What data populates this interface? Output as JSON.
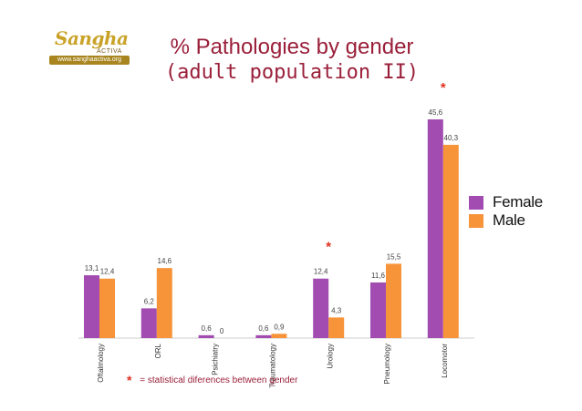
{
  "logo": {
    "word": "Sangha",
    "sub": "ACTIVA",
    "url": "www.sanghaactiva.org"
  },
  "title_line1": "% Pathologies by gender",
  "title_line2": "(adult population II)",
  "footnote": {
    "symbol": "*",
    "text": "= statistical diferences between gender"
  },
  "colors": {
    "female": "#a24bb0",
    "male": "#f7943a",
    "star": "#e0301e",
    "title": "#9a1f3a"
  },
  "chart_data": {
    "type": "bar",
    "title": "% Pathologies by gender (adult population II)",
    "categories": [
      "Oftalmology",
      "ORL",
      "Psichiatry",
      "Traumatology",
      "Urology",
      "Pneumology",
      "Locomotor"
    ],
    "series": [
      {
        "name": "Female",
        "values": [
          13.1,
          6.2,
          0.6,
          0.6,
          12.4,
          11.6,
          45.6
        ],
        "labels": [
          "13,1",
          "6,2",
          "0,6",
          "0,6",
          "12,4",
          "11,6",
          "45,6"
        ]
      },
      {
        "name": "Male",
        "values": [
          12.4,
          14.6,
          0,
          0.9,
          4.3,
          15.5,
          40.3
        ],
        "labels": [
          "12,4",
          "14,6",
          "0",
          "0,9",
          "4,3",
          "15,5",
          "40,3"
        ]
      }
    ],
    "significant": [
      "Urology",
      "Locomotor"
    ],
    "significance_symbol": "*",
    "legend_position": "right",
    "grid": false,
    "ylim": [
      0,
      50
    ]
  }
}
